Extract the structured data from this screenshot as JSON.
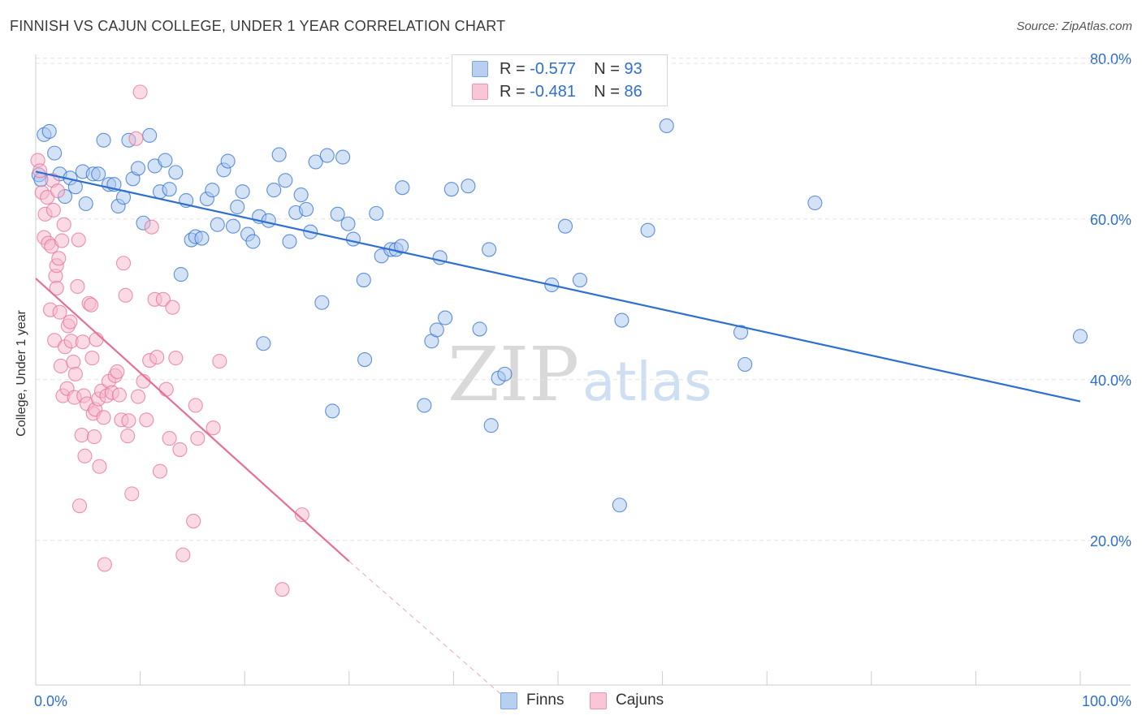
{
  "chart_data": {
    "type": "scatter",
    "title": "FINNISH VS CAJUN COLLEGE, UNDER 1 YEAR CORRELATION CHART",
    "source": "Source: ZipAtlas.com",
    "xlabel": "",
    "ylabel": "College, Under 1 year",
    "xlim": [
      0,
      100
    ],
    "ylim": [
      2,
      82
    ],
    "x_tick_labels": [
      "0.0%",
      "100.0%"
    ],
    "y_ticks": [
      {
        "value": 20,
        "label": "20.0%"
      },
      {
        "value": 40,
        "label": "40.0%"
      },
      {
        "value": 60,
        "label": "60.0%"
      },
      {
        "value": 80,
        "label": "80.0%"
      }
    ],
    "grid": true,
    "legend_placement": "top-center",
    "watermark": "ZIPatlas",
    "stats": [
      {
        "series": "Finns",
        "r_label": "R =",
        "r_value": "-0.577",
        "n_label": "N =",
        "n_value": "93"
      },
      {
        "series": "Cajuns",
        "r_label": "R =",
        "r_value": "-0.481",
        "n_label": "N =",
        "n_value": "86"
      }
    ],
    "series": [
      {
        "name": "Finns",
        "color": "#2e6fcf",
        "fill": "#a9c6ee",
        "trend": {
          "x0": 0,
          "y0": 65.9,
          "x1": 100,
          "y1": 37.3
        },
        "points": [
          [
            0.3,
            65.5
          ],
          [
            0.8,
            70.5
          ],
          [
            1.3,
            70.9
          ],
          [
            1.8,
            68.2
          ],
          [
            2.3,
            65.6
          ],
          [
            2.8,
            62.8
          ],
          [
            3.3,
            65.1
          ],
          [
            3.8,
            64.0
          ],
          [
            4.5,
            65.9
          ],
          [
            4.8,
            61.9
          ],
          [
            5.5,
            65.6
          ],
          [
            6.0,
            65.6
          ],
          [
            6.5,
            69.8
          ],
          [
            7.0,
            64.3
          ],
          [
            7.5,
            64.3
          ],
          [
            7.9,
            61.6
          ],
          [
            8.4,
            62.7
          ],
          [
            8.9,
            69.8
          ],
          [
            9.3,
            65.0
          ],
          [
            9.8,
            66.3
          ],
          [
            10.3,
            59.5
          ],
          [
            10.9,
            70.4
          ],
          [
            11.4,
            66.6
          ],
          [
            11.9,
            63.4
          ],
          [
            12.4,
            67.3
          ],
          [
            12.8,
            63.7
          ],
          [
            13.4,
            65.8
          ],
          [
            13.9,
            53.1
          ],
          [
            14.4,
            62.3
          ],
          [
            14.9,
            57.4
          ],
          [
            15.3,
            57.8
          ],
          [
            15.9,
            57.6
          ],
          [
            16.4,
            62.5
          ],
          [
            16.9,
            63.6
          ],
          [
            17.4,
            59.3
          ],
          [
            18.0,
            66.1
          ],
          [
            18.4,
            67.2
          ],
          [
            18.9,
            59.1
          ],
          [
            19.3,
            61.5
          ],
          [
            19.8,
            63.4
          ],
          [
            20.3,
            58.1
          ],
          [
            20.8,
            57.2
          ],
          [
            21.4,
            60.3
          ],
          [
            21.8,
            44.5
          ],
          [
            22.3,
            59.8
          ],
          [
            22.8,
            63.6
          ],
          [
            23.3,
            68.0
          ],
          [
            23.9,
            64.8
          ],
          [
            24.3,
            57.2
          ],
          [
            24.9,
            60.8
          ],
          [
            25.4,
            63.0
          ],
          [
            25.9,
            61.2
          ],
          [
            26.3,
            58.4
          ],
          [
            26.8,
            67.1
          ],
          [
            27.4,
            49.6
          ],
          [
            27.9,
            67.9
          ],
          [
            28.4,
            36.1
          ],
          [
            28.9,
            60.6
          ],
          [
            29.4,
            67.7
          ],
          [
            29.9,
            59.4
          ],
          [
            30.4,
            57.5
          ],
          [
            31.4,
            52.4
          ],
          [
            31.5,
            42.5
          ],
          [
            32.6,
            60.7
          ],
          [
            33.1,
            55.4
          ],
          [
            34.0,
            56.2
          ],
          [
            34.5,
            56.2
          ],
          [
            35.0,
            56.6
          ],
          [
            35.1,
            63.9
          ],
          [
            37.2,
            36.8
          ],
          [
            37.9,
            44.8
          ],
          [
            38.4,
            46.2
          ],
          [
            38.7,
            55.2
          ],
          [
            39.2,
            47.7
          ],
          [
            39.8,
            63.7
          ],
          [
            41.4,
            64.1
          ],
          [
            42.5,
            46.3
          ],
          [
            43.4,
            56.2
          ],
          [
            43.6,
            34.3
          ],
          [
            44.3,
            40.2
          ],
          [
            44.9,
            40.7
          ],
          [
            49.4,
            51.8
          ],
          [
            50.7,
            59.1
          ],
          [
            52.1,
            52.4
          ],
          [
            56.1,
            47.4
          ],
          [
            55.9,
            24.4
          ],
          [
            58.6,
            58.6
          ],
          [
            60.4,
            71.6
          ],
          [
            67.5,
            45.9
          ],
          [
            67.9,
            41.9
          ],
          [
            74.6,
            62.0
          ],
          [
            100.0,
            45.4
          ],
          [
            0.5,
            64.9
          ]
        ]
      },
      {
        "name": "Cajuns",
        "color": "#e76f96",
        "fill": "#f6b8cb",
        "trend": {
          "x0": 0,
          "y0": 52.6,
          "x1": 30,
          "y1": 17.4
        },
        "trend_dashed": {
          "x0": 30,
          "y0": 17.4,
          "x1": 44.5,
          "y1": 0.9
        },
        "points": [
          [
            0.2,
            67.3
          ],
          [
            0.4,
            66.0
          ],
          [
            0.6,
            63.3
          ],
          [
            0.8,
            57.7
          ],
          [
            0.9,
            60.6
          ],
          [
            1.1,
            62.7
          ],
          [
            1.2,
            57.0
          ],
          [
            1.4,
            48.7
          ],
          [
            1.5,
            56.6
          ],
          [
            1.6,
            64.8
          ],
          [
            1.7,
            61.1
          ],
          [
            1.8,
            44.9
          ],
          [
            1.9,
            52.9
          ],
          [
            2.0,
            54.2
          ],
          [
            2.0,
            51.4
          ],
          [
            2.1,
            63.5
          ],
          [
            2.2,
            55.1
          ],
          [
            2.3,
            48.4
          ],
          [
            2.4,
            41.7
          ],
          [
            2.5,
            57.3
          ],
          [
            2.6,
            38.0
          ],
          [
            2.7,
            59.3
          ],
          [
            2.8,
            44.1
          ],
          [
            3.0,
            38.9
          ],
          [
            3.1,
            46.7
          ],
          [
            3.3,
            47.2
          ],
          [
            3.4,
            44.8
          ],
          [
            3.6,
            42.2
          ],
          [
            3.7,
            37.8
          ],
          [
            3.8,
            40.7
          ],
          [
            4.0,
            51.6
          ],
          [
            4.1,
            57.4
          ],
          [
            4.2,
            24.3
          ],
          [
            4.4,
            33.1
          ],
          [
            4.5,
            44.7
          ],
          [
            4.6,
            38.0
          ],
          [
            4.7,
            30.5
          ],
          [
            4.9,
            37.0
          ],
          [
            5.1,
            49.5
          ],
          [
            5.3,
            49.3
          ],
          [
            5.4,
            42.7
          ],
          [
            5.5,
            35.8
          ],
          [
            5.6,
            32.9
          ],
          [
            5.7,
            36.3
          ],
          [
            5.8,
            45.0
          ],
          [
            6.0,
            37.6
          ],
          [
            6.1,
            29.2
          ],
          [
            6.3,
            38.6
          ],
          [
            6.5,
            35.3
          ],
          [
            6.6,
            17.0
          ],
          [
            6.8,
            38.0
          ],
          [
            7.0,
            39.8
          ],
          [
            7.3,
            38.4
          ],
          [
            7.6,
            40.5
          ],
          [
            7.8,
            41.0
          ],
          [
            8.0,
            38.1
          ],
          [
            8.2,
            35.0
          ],
          [
            8.4,
            54.5
          ],
          [
            8.6,
            50.5
          ],
          [
            8.8,
            33.0
          ],
          [
            8.9,
            34.9
          ],
          [
            9.2,
            25.8
          ],
          [
            9.6,
            70.0
          ],
          [
            9.8,
            37.9
          ],
          [
            10.0,
            75.8
          ],
          [
            10.3,
            39.8
          ],
          [
            10.6,
            35.0
          ],
          [
            10.9,
            42.4
          ],
          [
            11.1,
            59.0
          ],
          [
            11.4,
            50.0
          ],
          [
            11.6,
            42.8
          ],
          [
            11.9,
            28.6
          ],
          [
            12.2,
            50.0
          ],
          [
            12.5,
            38.8
          ],
          [
            12.8,
            32.7
          ],
          [
            13.1,
            49.0
          ],
          [
            13.4,
            42.7
          ],
          [
            13.8,
            31.3
          ],
          [
            14.1,
            18.2
          ],
          [
            15.1,
            22.4
          ],
          [
            15.3,
            36.8
          ],
          [
            15.5,
            32.7
          ],
          [
            17.0,
            34.0
          ],
          [
            17.6,
            42.3
          ],
          [
            23.6,
            13.9
          ],
          [
            25.5,
            23.2
          ]
        ]
      }
    ]
  }
}
